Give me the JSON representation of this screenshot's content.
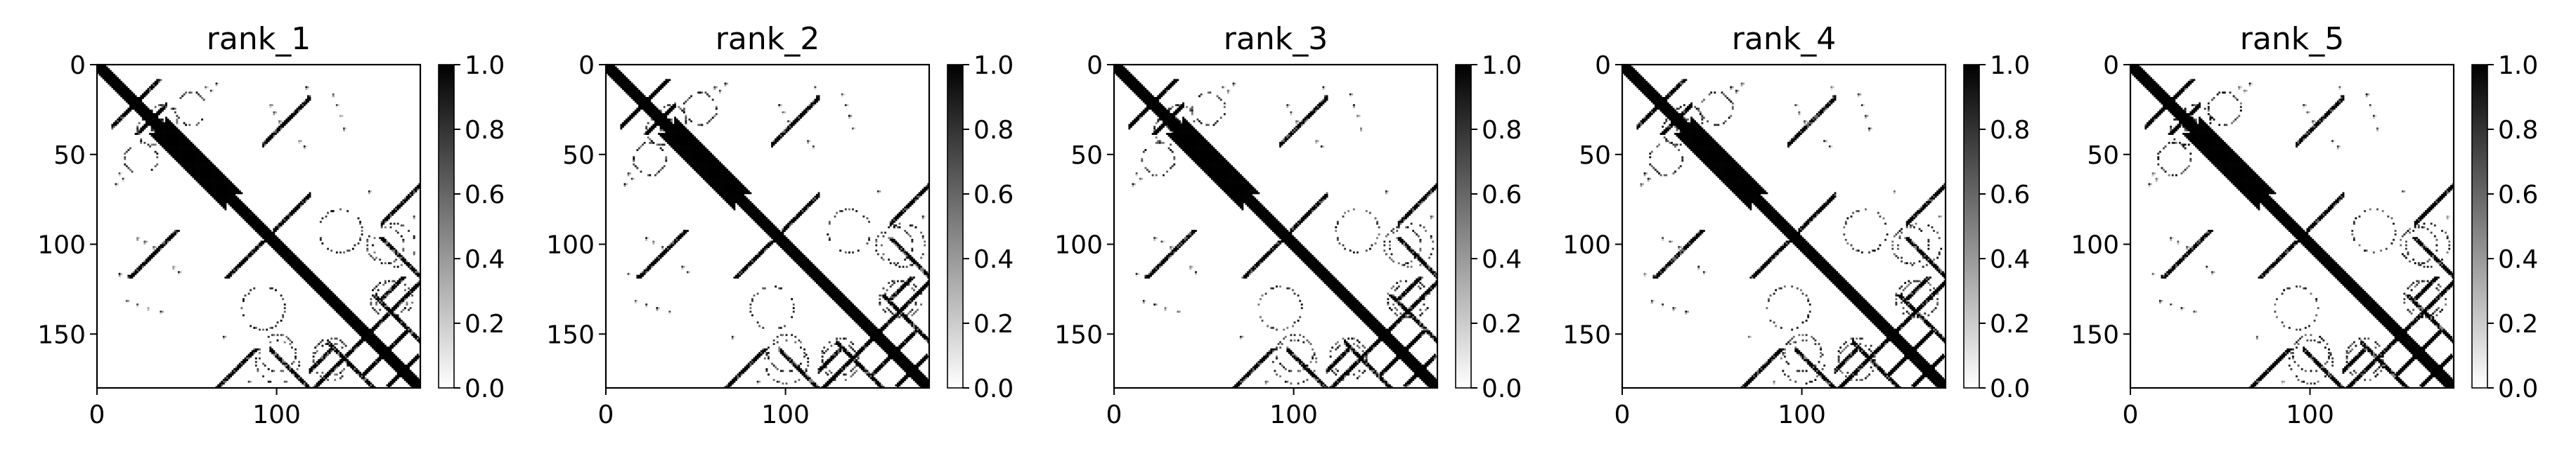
{
  "chart_data": [
    {
      "type": "heatmap",
      "title": "rank_1",
      "matrix_size": 180,
      "xlim": [
        0,
        180
      ],
      "ylim": [
        180,
        0
      ],
      "x_ticks": [
        0,
        100
      ],
      "y_ticks": [
        0,
        50,
        100,
        150
      ],
      "colormap": "gray_r",
      "colorbar": {
        "min": 0.0,
        "max": 1.0,
        "ticks": [
          "0.0",
          "0.2",
          "0.4",
          "0.6",
          "0.8",
          "1.0"
        ]
      }
    },
    {
      "type": "heatmap",
      "title": "rank_2",
      "matrix_size": 180,
      "xlim": [
        0,
        180
      ],
      "ylim": [
        180,
        0
      ],
      "x_ticks": [
        0,
        100
      ],
      "y_ticks": [
        0,
        50,
        100,
        150
      ],
      "colormap": "gray_r",
      "colorbar": {
        "min": 0.0,
        "max": 1.0,
        "ticks": [
          "0.0",
          "0.2",
          "0.4",
          "0.6",
          "0.8",
          "1.0"
        ]
      }
    },
    {
      "type": "heatmap",
      "title": "rank_3",
      "matrix_size": 180,
      "xlim": [
        0,
        180
      ],
      "ylim": [
        180,
        0
      ],
      "x_ticks": [
        0,
        100
      ],
      "y_ticks": [
        0,
        50,
        100,
        150
      ],
      "colormap": "gray_r",
      "colorbar": {
        "min": 0.0,
        "max": 1.0,
        "ticks": [
          "0.0",
          "0.2",
          "0.4",
          "0.6",
          "0.8",
          "1.0"
        ]
      }
    },
    {
      "type": "heatmap",
      "title": "rank_4",
      "matrix_size": 180,
      "xlim": [
        0,
        180
      ],
      "ylim": [
        180,
        0
      ],
      "x_ticks": [
        0,
        100
      ],
      "y_ticks": [
        0,
        50,
        100,
        150
      ],
      "colormap": "gray_r",
      "colorbar": {
        "min": 0.0,
        "max": 1.0,
        "ticks": [
          "0.0",
          "0.2",
          "0.4",
          "0.6",
          "0.8",
          "1.0"
        ]
      }
    },
    {
      "type": "heatmap",
      "title": "rank_5",
      "matrix_size": 180,
      "xlim": [
        0,
        180
      ],
      "ylim": [
        180,
        0
      ],
      "x_ticks": [
        0,
        100
      ],
      "y_ticks": [
        0,
        50,
        100,
        150
      ],
      "colormap": "gray_r",
      "colorbar": {
        "min": 0.0,
        "max": 1.0,
        "ticks": [
          "0.0",
          "0.2",
          "0.4",
          "0.6",
          "0.8",
          "1.0"
        ]
      }
    }
  ],
  "contact_features": {
    "diagonal": {
      "from": 0,
      "to": 180,
      "width": 4
    },
    "thick_diagonal_segment": {
      "from": 38,
      "to": 72,
      "width": 9
    },
    "antiparallel_bands": [
      {
        "center_sum": 42,
        "from": 8,
        "to": 28
      },
      {
        "center_sum": 60,
        "from": 24,
        "to": 38
      },
      {
        "center_sum": 136,
        "from": 92,
        "to": 118
      },
      {
        "center_sum": 190,
        "from": 98,
        "to": 118
      },
      {
        "center_sum": 246,
        "from": 158,
        "to": 180
      },
      {
        "center_sum": 340,
        "from": 162,
        "to": 178
      },
      {
        "center_sum": 300,
        "from": 118,
        "to": 154
      },
      {
        "center_sum": 320,
        "from": 148,
        "to": 170
      },
      {
        "center_sum": 288,
        "from": 118,
        "to": 130
      }
    ],
    "parallel_bands": [
      {
        "offset": 62,
        "from": 96,
        "to": 150
      },
      {
        "offset": 26,
        "from": 128,
        "to": 168
      }
    ],
    "dotted_arcs": [
      {
        "cx": 36,
        "cy": 30,
        "r": 8
      },
      {
        "cx": 24,
        "cy": 52,
        "r": 9
      },
      {
        "cx": 135,
        "cy": 92,
        "r": 12
      },
      {
        "cx": 165,
        "cy": 100,
        "r": 12
      },
      {
        "cx": 162,
        "cy": 130,
        "r": 10
      },
      {
        "cx": 130,
        "cy": 165,
        "r": 10
      },
      {
        "cx": 100,
        "cy": 160,
        "r": 10
      }
    ],
    "scattered_contacts": [
      [
        60,
        12
      ],
      [
        63,
        14
      ],
      [
        66,
        10
      ],
      [
        116,
        12
      ],
      [
        117,
        17
      ],
      [
        131,
        16
      ],
      [
        133,
        22
      ],
      [
        135,
        28
      ],
      [
        137,
        35
      ],
      [
        12,
        60
      ],
      [
        14,
        63
      ],
      [
        10,
        66
      ],
      [
        12,
        116
      ],
      [
        17,
        117
      ],
      [
        16,
        131
      ],
      [
        22,
        133
      ],
      [
        28,
        135
      ],
      [
        35,
        137
      ],
      [
        96,
        22
      ],
      [
        98,
        26
      ],
      [
        101,
        31
      ],
      [
        22,
        96
      ],
      [
        26,
        98
      ],
      [
        31,
        101
      ],
      [
        112,
        42
      ],
      [
        115,
        45
      ],
      [
        42,
        112
      ],
      [
        45,
        115
      ],
      [
        151,
        70
      ],
      [
        70,
        151
      ],
      [
        176,
        84
      ],
      [
        84,
        176
      ]
    ]
  }
}
